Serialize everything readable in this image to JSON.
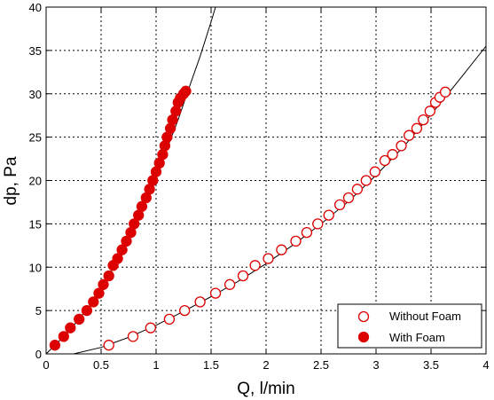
{
  "chart_data": {
    "type": "scatter",
    "xlabel": "Q, l/min",
    "ylabel": "dp, Pa",
    "xlim": [
      0,
      4
    ],
    "ylim": [
      0,
      40
    ],
    "xticks": [
      0,
      0.5,
      1,
      1.5,
      2,
      2.5,
      3,
      3.5,
      4
    ],
    "xtick_labels": [
      "0",
      "0.5",
      "1",
      "1.5",
      "2",
      "2.5",
      "3",
      "3.5",
      "4"
    ],
    "yticks": [
      0,
      5,
      10,
      15,
      20,
      25,
      30,
      35,
      40
    ],
    "ytick_labels": [
      "0",
      "5",
      "10",
      "15",
      "20",
      "25",
      "30",
      "35",
      "40"
    ],
    "grid": true,
    "legend_position": "bottom-right",
    "series": [
      {
        "name": "Without Foam",
        "marker": "open-circle",
        "color": "#dd0000",
        "x": [
          0.57,
          0.79,
          0.95,
          1.12,
          1.26,
          1.4,
          1.54,
          1.67,
          1.79,
          1.9,
          2.02,
          2.14,
          2.27,
          2.37,
          2.47,
          2.57,
          2.67,
          2.75,
          2.83,
          2.91,
          2.99,
          3.08,
          3.15,
          3.23,
          3.3,
          3.37,
          3.43,
          3.49,
          3.54,
          3.58,
          3.63
        ],
        "y": [
          1.0,
          2.0,
          3.0,
          4.0,
          5.0,
          6.0,
          7.0,
          8.0,
          9.0,
          10.2,
          11.0,
          12.0,
          13.0,
          14.0,
          15.0,
          16.0,
          17.2,
          18.0,
          19.0,
          20.0,
          21.0,
          22.3,
          23.0,
          24.0,
          25.2,
          26.0,
          27.0,
          28.0,
          29.0,
          29.6,
          30.2
        ],
        "fit_x": [
          0.25,
          0.5,
          0.75,
          1.0,
          1.25,
          1.5,
          1.75,
          2.0,
          2.25,
          2.5,
          2.75,
          3.0,
          3.25,
          3.5,
          3.75,
          4.0
        ],
        "fit_y": [
          0.0,
          0.75,
          1.9,
          3.3,
          4.9,
          6.6,
          8.4,
          10.4,
          12.6,
          15.0,
          17.6,
          20.6,
          23.9,
          27.6,
          31.5,
          35.5
        ]
      },
      {
        "name": "With Foam",
        "marker": "filled-circle",
        "color": "#dd0000",
        "x": [
          0.08,
          0.16,
          0.22,
          0.3,
          0.37,
          0.43,
          0.48,
          0.52,
          0.57,
          0.61,
          0.65,
          0.69,
          0.73,
          0.77,
          0.8,
          0.84,
          0.87,
          0.91,
          0.94,
          0.97,
          1.0,
          1.03,
          1.06,
          1.08,
          1.1,
          1.13,
          1.15,
          1.18,
          1.2,
          1.22,
          1.25,
          1.27
        ],
        "y": [
          1.0,
          2.0,
          3.0,
          4.0,
          5.0,
          6.0,
          7.0,
          8.0,
          9.0,
          10.2,
          11.0,
          12.0,
          13.0,
          14.0,
          15.0,
          16.0,
          17.0,
          18.0,
          19.0,
          20.0,
          21.0,
          22.0,
          23.0,
          24.0,
          25.0,
          26.0,
          27.0,
          28.0,
          29.0,
          29.5,
          30.0,
          30.3
        ],
        "fit_x": [
          0.0,
          0.2,
          0.4,
          0.6,
          0.8,
          1.0,
          1.2,
          1.3,
          1.4,
          1.5,
          1.54
        ],
        "fit_y": [
          0.0,
          2.5,
          5.6,
          9.7,
          14.7,
          20.4,
          27.0,
          30.7,
          34.3,
          38.3,
          40.0
        ]
      }
    ]
  }
}
